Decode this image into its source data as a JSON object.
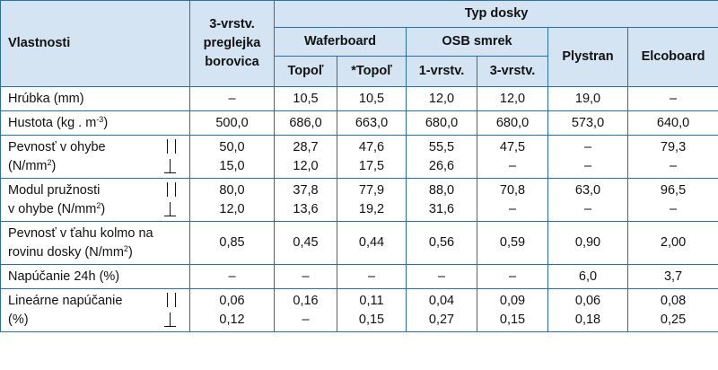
{
  "header": {
    "properties": "Vlastnosti",
    "plywood": "3-vrstv. preglejka borovica",
    "board_type": "Typ dosky",
    "waferboard": "Waferboard",
    "osb": "OSB smrek",
    "plystran": "Plystran",
    "elcoboard": "Elcoboard",
    "topol": "Topoľ",
    "topol_star": "*Topoľ",
    "osb_1": "1-vrstv.",
    "osb_3": "3-vrstv."
  },
  "rows": [
    {
      "label": "Hrúbka (mm)",
      "values": [
        "–",
        "10,5",
        "10,5",
        "12,0",
        "12,0",
        "19,0",
        "–"
      ]
    },
    {
      "label": "Hustota (kg . m",
      "sup": "-3",
      "label_end": ")",
      "values": [
        "500,0",
        "686,0",
        "663,0",
        "680,0",
        "680,0",
        "573,0",
        "640,0"
      ]
    },
    {
      "label1": "Pevnosť v ohybe",
      "label2": "(N/mm",
      "sup": "2",
      "label2_end": ")",
      "directional": true,
      "values_par": [
        "50,0",
        "28,7",
        "47,6",
        "55,5",
        "47,5",
        "–",
        "79,3"
      ],
      "values_perp": [
        "15,0",
        "12,0",
        "17,5",
        "26,6",
        "–",
        "–",
        "–"
      ]
    },
    {
      "label1": "Modul pružnosti",
      "label2": "v ohybe (N/mm",
      "sup": "2",
      "label2_end": ")",
      "directional": true,
      "values_par": [
        "80,0",
        "37,8",
        "77,9",
        "88,0",
        "70,8",
        "63,0",
        "96,5"
      ],
      "values_perp": [
        "12,0",
        "13,6",
        "19,2",
        "31,6",
        "–",
        "–",
        "–"
      ]
    },
    {
      "label1": "Pevnosť v ťahu kolmo na",
      "label2": "rovinu dosky (N/mm",
      "sup": "2",
      "label2_end": ")",
      "values": [
        "0,85",
        "0,45",
        "0,44",
        "0,56",
        "0,59",
        "0,90",
        "2,00"
      ]
    },
    {
      "label": "Napúčanie 24h (%)",
      "values": [
        "–",
        "–",
        "–",
        "–",
        "–",
        "6,0",
        "3,7"
      ]
    },
    {
      "label1": "Lineárne napúčanie",
      "label2": "(%)",
      "directional": true,
      "values_par": [
        "0,06",
        "0,16",
        "0,11",
        "0,04",
        "0,09",
        "0,06",
        "0,08"
      ],
      "values_perp": [
        "0,12",
        "–",
        "0,15",
        "0,27",
        "0,15",
        "0,18",
        "0,25"
      ]
    }
  ]
}
